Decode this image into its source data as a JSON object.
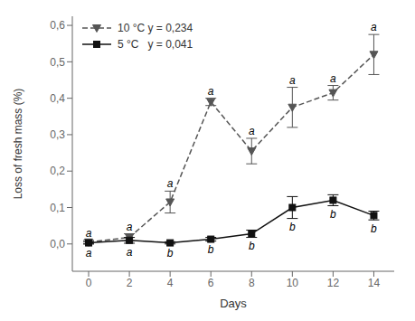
{
  "chart_data": {
    "type": "line",
    "xlabel": "Days",
    "ylabel": "Loss of fresh mass (%)",
    "x": [
      0,
      2,
      4,
      6,
      8,
      10,
      12,
      14
    ],
    "xlim": [
      -0.8,
      15.0
    ],
    "xticks": [
      0,
      2,
      4,
      6,
      8,
      10,
      12,
      14
    ],
    "ylim": [
      -0.075,
      0.625
    ],
    "yticks": [
      {
        "value": 0.0,
        "label": "0,0"
      },
      {
        "value": 0.1,
        "label": "0,1"
      },
      {
        "value": 0.2,
        "label": "0,2"
      },
      {
        "value": 0.3,
        "label": "0,3"
      },
      {
        "value": 0.4,
        "label": "0,4"
      },
      {
        "value": 0.5,
        "label": "0,5"
      },
      {
        "value": 0.6,
        "label": "0,6"
      }
    ],
    "grid": false,
    "legend": "upper left",
    "series": [
      {
        "name": "10 °C y = 0,234",
        "color": "#555555",
        "line_style": "dashed",
        "marker": "triangle_down",
        "values": [
          0.005,
          0.018,
          0.115,
          0.39,
          0.255,
          0.375,
          0.415,
          0.52
        ],
        "yerr": [
          0.005,
          0.01,
          0.03,
          0.01,
          0.035,
          0.055,
          0.02,
          0.055
        ],
        "annotations": [
          "a",
          "a",
          "a",
          "a",
          "a",
          "a",
          "a",
          "a"
        ]
      },
      {
        "name": "5 °C   y = 0,041",
        "color": "#111111",
        "line_style": "solid",
        "marker": "square",
        "values": [
          0.003,
          0.01,
          0.003,
          0.013,
          0.028,
          0.1,
          0.12,
          0.078
        ],
        "yerr": [
          0.003,
          0.008,
          0.003,
          0.005,
          0.01,
          0.03,
          0.015,
          0.012
        ],
        "annotations": [
          "a",
          "a",
          "b",
          "b",
          "b",
          "b",
          "b",
          "b"
        ]
      }
    ]
  }
}
